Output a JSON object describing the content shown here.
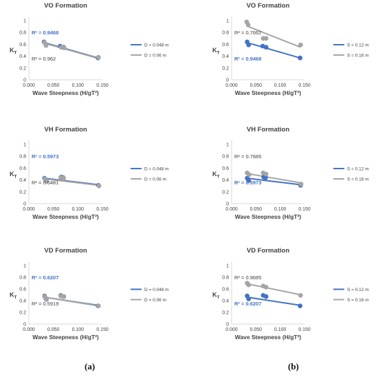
{
  "captions": [
    "(a)",
    "(b)"
  ],
  "colors": {
    "blue": "#4472C4",
    "gray": "#A5A5A5",
    "axis": "#D9D9D9",
    "text": "#404040"
  },
  "chart_data": [
    {
      "type": "scatter",
      "title": "VO Formation",
      "xlabel": "Wave Steepness (H/gT²)",
      "ylabel": "K_T",
      "xlim": [
        0,
        0.15
      ],
      "ylim": [
        0,
        1
      ],
      "xticks": [
        "0.000",
        "0.050",
        "0.100",
        "0.150"
      ],
      "yticks": [
        "0",
        "0.2",
        "0.4",
        "0.6",
        "0.8",
        "1"
      ],
      "legend_position": "right",
      "series": [
        {
          "name": "D = 0.048 m",
          "color": "#4472C4",
          "x": [
            0.031,
            0.064,
            0.071,
            0.141
          ],
          "y": [
            0.64,
            0.57,
            0.55,
            0.37
          ],
          "r2": "R² = 0.9468",
          "r2_pos": "upper",
          "trend": [
            [
              0.031,
              0.63
            ],
            [
              0.141,
              0.37
            ]
          ]
        },
        {
          "name": "D = 0.06 m",
          "color": "#A5A5A5",
          "x": [
            0.032,
            0.035,
            0.066,
            0.072,
            0.142
          ],
          "y": [
            0.63,
            0.58,
            0.55,
            0.54,
            0.38
          ],
          "r2": "R² = 0.962",
          "r2_pos": "lower",
          "trend": [
            [
              0.031,
              0.62
            ],
            [
              0.142,
              0.36
            ]
          ]
        }
      ]
    },
    {
      "type": "scatter",
      "title": "VO Formation",
      "xlabel": "Wave Steepness (H/gT²)",
      "ylabel": "K_T",
      "xlim": [
        0,
        0.15
      ],
      "ylim": [
        0,
        1
      ],
      "xticks": [
        "0.000",
        "0.050",
        "0.100",
        "0.150"
      ],
      "yticks": [
        "0",
        "0.2",
        "0.4",
        "0.6",
        "0.8",
        "1"
      ],
      "legend_position": "right",
      "series": [
        {
          "name": "S = 0.12 m",
          "color": "#4472C4",
          "x": [
            0.032,
            0.035,
            0.064,
            0.071,
            0.141
          ],
          "y": [
            0.64,
            0.59,
            0.57,
            0.55,
            0.37
          ],
          "r2": "R² = 0.9468",
          "r2_pos": "lower",
          "trend": [
            [
              0.031,
              0.63
            ],
            [
              0.141,
              0.37
            ]
          ]
        },
        {
          "name": "S = 0.16 m",
          "color": "#A5A5A5",
          "x": [
            0.031,
            0.034,
            0.065,
            0.071,
            0.142
          ],
          "y": [
            0.98,
            0.93,
            0.7,
            0.7,
            0.59
          ],
          "r2": "R² = 0.7662",
          "r2_pos": "upper",
          "trend": [
            [
              0.031,
              0.91
            ],
            [
              0.142,
              0.55
            ]
          ]
        }
      ]
    },
    {
      "type": "scatter",
      "title": "VH Formation",
      "xlabel": "Wave Steepness (H/gT²)",
      "ylabel": "K_T",
      "xlim": [
        0,
        0.15
      ],
      "ylim": [
        0,
        1
      ],
      "xticks": [
        "0.000",
        "0.050",
        "0.100",
        "0.150"
      ],
      "yticks": [
        "0",
        "0.2",
        "0.4",
        "0.6",
        "0.8",
        "1"
      ],
      "legend_position": "right",
      "series": [
        {
          "name": "D = 0.048 m",
          "color": "#4472C4",
          "x": [
            0.032,
            0.035,
            0.066,
            0.07,
            0.142
          ],
          "y": [
            0.43,
            0.39,
            0.45,
            0.44,
            0.31
          ],
          "r2": "R² = 0.5973",
          "r2_pos": "upper",
          "trend": [
            [
              0.031,
              0.43
            ],
            [
              0.142,
              0.32
            ]
          ]
        },
        {
          "name": "D = 0.06 m",
          "color": "#A5A5A5",
          "x": [
            0.033,
            0.036,
            0.065,
            0.071,
            0.143
          ],
          "y": [
            0.42,
            0.38,
            0.44,
            0.43,
            0.3
          ],
          "r2": "R² = 0.6481",
          "r2_pos": "lower",
          "trend": [
            [
              0.031,
              0.42
            ],
            [
              0.143,
              0.31
            ]
          ]
        }
      ]
    },
    {
      "type": "scatter",
      "title": "VH Formation",
      "xlabel": "Wave Steepness (H/gT²)",
      "ylabel": "K_T",
      "xlim": [
        0,
        0.15
      ],
      "ylim": [
        0,
        1
      ],
      "xticks": [
        "0.000",
        "0.050",
        "0.100",
        "0.150"
      ],
      "yticks": [
        "0",
        "0.2",
        "0.4",
        "0.6",
        "0.8",
        "1"
      ],
      "legend_position": "right",
      "series": [
        {
          "name": "S = 0.12 m",
          "color": "#4472C4",
          "x": [
            0.032,
            0.035,
            0.066,
            0.07,
            0.142
          ],
          "y": [
            0.43,
            0.39,
            0.45,
            0.44,
            0.31
          ],
          "r2": "R² = 0.5973",
          "r2_pos": "lower",
          "trend": [
            [
              0.031,
              0.43
            ],
            [
              0.142,
              0.32
            ]
          ]
        },
        {
          "name": "S = 0.16 m",
          "color": "#A5A5A5",
          "x": [
            0.032,
            0.036,
            0.065,
            0.071,
            0.143
          ],
          "y": [
            0.52,
            0.49,
            0.52,
            0.5,
            0.33
          ],
          "r2": "R² = 0.7685",
          "r2_pos": "upper",
          "trend": [
            [
              0.031,
              0.51
            ],
            [
              0.143,
              0.35
            ]
          ]
        }
      ]
    },
    {
      "type": "scatter",
      "title": "VD Formation",
      "xlabel": "Wave Steepness (H/gT²)",
      "ylabel": "K_T",
      "xlim": [
        0,
        0.15
      ],
      "ylim": [
        0,
        1
      ],
      "xticks": [
        "0.000",
        "0.050",
        "0.100",
        "0.150"
      ],
      "yticks": [
        "0",
        "0.2",
        "0.4",
        "0.6",
        "0.8",
        "1"
      ],
      "legend_position": "right",
      "series": [
        {
          "name": "D = 0.048 m",
          "color": "#4472C4",
          "x": [
            0.032,
            0.035,
            0.065,
            0.071,
            0.141
          ],
          "y": [
            0.48,
            0.43,
            0.49,
            0.47,
            0.31
          ],
          "r2": "R² = 0.6207",
          "r2_pos": "upper",
          "trend": [
            [
              0.031,
              0.46
            ],
            [
              0.141,
              0.32
            ]
          ]
        },
        {
          "name": "D = 0.06 m",
          "color": "#A5A5A5",
          "x": [
            0.032,
            0.036,
            0.065,
            0.07,
            0.142
          ],
          "y": [
            0.47,
            0.42,
            0.48,
            0.47,
            0.31
          ],
          "r2": "R² = 0.5919",
          "r2_pos": "lower",
          "trend": [
            [
              0.031,
              0.46
            ],
            [
              0.142,
              0.31
            ]
          ]
        }
      ]
    },
    {
      "type": "scatter",
      "title": "VD Formation",
      "xlabel": "Wave Steepness (H/gT²)",
      "ylabel": "K_T",
      "xlim": [
        0,
        0.15
      ],
      "ylim": [
        0,
        1
      ],
      "xticks": [
        "0.000",
        "0.050",
        "0.100",
        "0.150"
      ],
      "yticks": [
        "0",
        "0.2",
        "0.4",
        "0.6",
        "0.8",
        "1"
      ],
      "legend_position": "right",
      "series": [
        {
          "name": "S = 0.12 m",
          "color": "#4472C4",
          "x": [
            0.032,
            0.035,
            0.065,
            0.071,
            0.141
          ],
          "y": [
            0.48,
            0.43,
            0.49,
            0.47,
            0.31
          ],
          "r2": "R² = 0.6207",
          "r2_pos": "lower",
          "trend": [
            [
              0.031,
              0.46
            ],
            [
              0.141,
              0.32
            ]
          ]
        },
        {
          "name": "S = 0.16 m",
          "color": "#A5A5A5",
          "x": [
            0.032,
            0.035,
            0.065,
            0.071,
            0.142
          ],
          "y": [
            0.7,
            0.67,
            0.65,
            0.63,
            0.49
          ],
          "r2": "R² = 0.9685",
          "r2_pos": "upper",
          "trend": [
            [
              0.031,
              0.69
            ],
            [
              0.142,
              0.5
            ]
          ]
        }
      ]
    }
  ]
}
